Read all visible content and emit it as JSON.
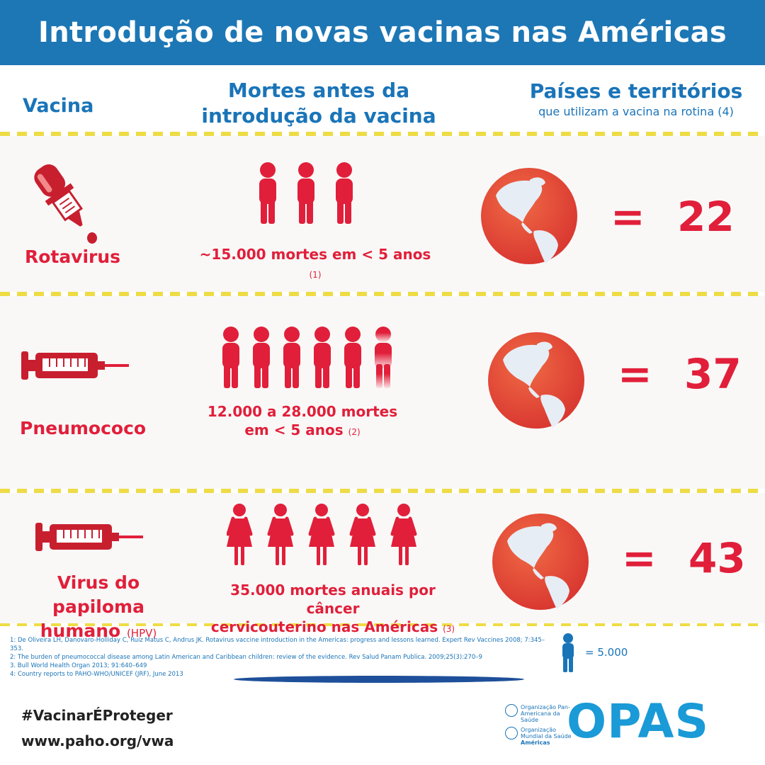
{
  "title": "Introdução de novas vacinas nas Américas",
  "headers": {
    "vacina": "Vacina",
    "mortes": "Mortes antes da introdução da vacina",
    "paises": "Países e territórios",
    "paises_sub": "que utilizam a vacina na rotina (4)"
  },
  "rows": [
    {
      "name": "Rotavirus",
      "icon": "dropper-icon",
      "deaths": "~15.000 mortes em < 5 anos",
      "ref": "(1)",
      "people": 3,
      "partial_last": false,
      "count": "22"
    },
    {
      "name": "Pneumococo",
      "icon": "syringe-icon",
      "deaths_line1": "12.000 a 28.000 mortes",
      "deaths_line2": "em < 5 anos",
      "ref": "(2)",
      "people": 6,
      "partial_last": true,
      "count": "37"
    },
    {
      "name_line1": "Virus do papiloma",
      "name_line2": "humano",
      "name_abbr": "(HPV)",
      "icon": "syringe-icon",
      "deaths_line1": "35.000 mortes anuais por câncer",
      "deaths_line2": "cervicouterino nas Américas",
      "ref": "(3)",
      "people": 5,
      "partial_last": false,
      "count": "43"
    }
  ],
  "equals": "=",
  "references": [
    "1: De Oliveira LH, Danovaro-Holliday C, Ruiz Matus C, Andrus JK. Rotavirus vaccine introduction in the Americas: progress and lessons learned. Expert Rev Vaccines 2008; 7:345–353.",
    "2: The burden of pneumococcal disease among Latin American and Caribbean children: review of the evidence. Rev Salud Panam Publica. 2009;25(3):270–9",
    "3. Bull World Health Organ 2013; 91:640–649",
    "4: Country reports to PAHO-WHO/UNICEF (JRF), June 2013"
  ],
  "legend": "=  5.000",
  "hashtag": "#VacinarÉProteger",
  "url": "www.paho.org/vwa",
  "logo": {
    "org1": "Organização Pan-Americana da Saúde",
    "org2": "Organização Mundial da Saúde",
    "org3": "Américas",
    "opas": "OPAS"
  },
  "colors": {
    "banner": "#1d77b5",
    "accent_red": "#e11f3a",
    "header_blue": "#1a74b8",
    "globe": "#e4473b",
    "continent": "#e6edf5"
  }
}
